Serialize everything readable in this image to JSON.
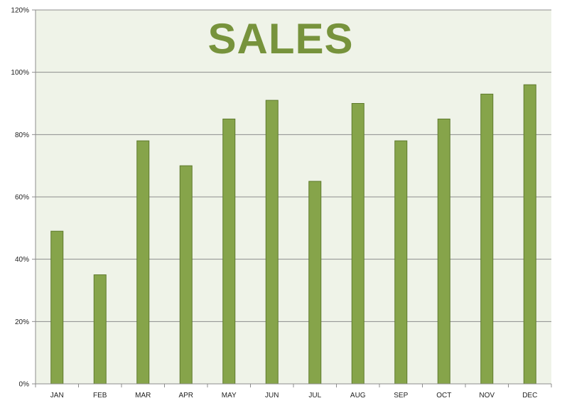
{
  "colors": {
    "plot_background": "#eff3e8",
    "bar_fill": "#86a44a",
    "bar_stroke": "#5e7a2c",
    "gridline": "#8c8c8c",
    "axis": "#8c8c8c",
    "text": "#222222",
    "title": "#77933c"
  },
  "chart_data": {
    "type": "bar",
    "title": "SALES",
    "xlabel": "",
    "ylabel": "",
    "categories": [
      "JAN",
      "FEB",
      "MAR",
      "APR",
      "MAY",
      "JUN",
      "JUL",
      "AUG",
      "SEP",
      "OCT",
      "NOV",
      "DEC"
    ],
    "series": [
      {
        "values": [
          49,
          35,
          78,
          70,
          85,
          91,
          65,
          90,
          78,
          85,
          93,
          96
        ]
      }
    ],
    "ylim": [
      0,
      120
    ],
    "yticks": [
      0,
      20,
      40,
      60,
      80,
      100,
      120
    ],
    "ytick_labels": [
      "0%",
      "20%",
      "40%",
      "60%",
      "80%",
      "100%",
      "120%"
    ],
    "grid": true,
    "legend": "none"
  }
}
